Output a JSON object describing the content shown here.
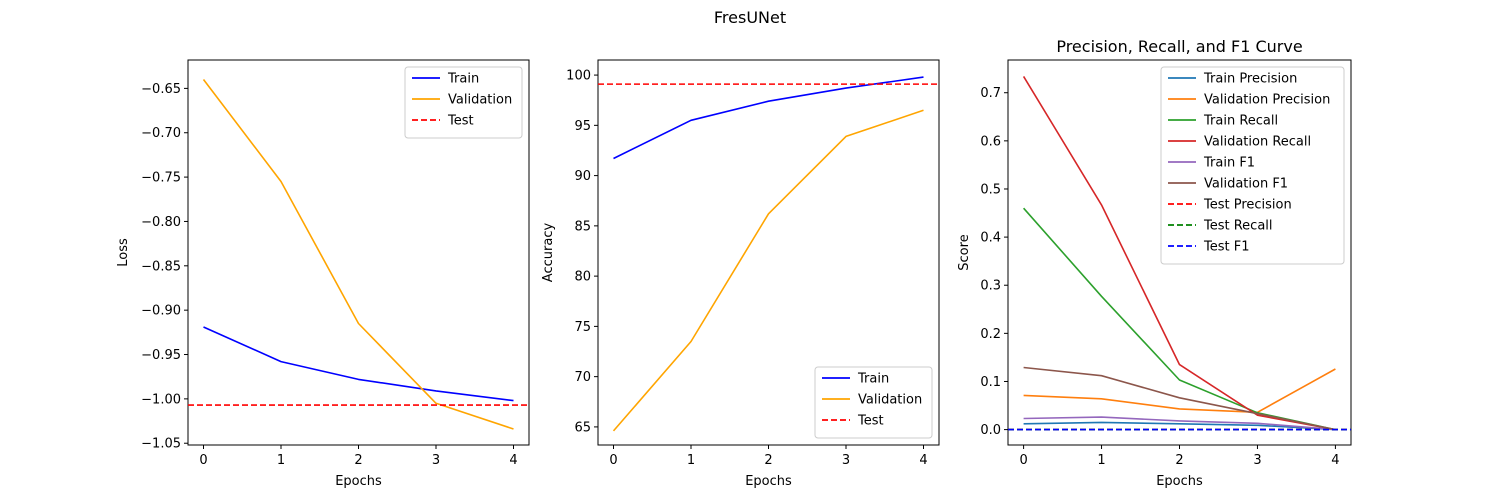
{
  "figure_title": "FresUNet",
  "chart_data": [
    {
      "type": "line",
      "title": "",
      "xlabel": "Epochs",
      "ylabel": "Loss",
      "xlim": [
        -0.2,
        4.2
      ],
      "ylim": [
        -1.052,
        -0.618
      ],
      "xticks": [
        0,
        1,
        2,
        3,
        4
      ],
      "yticks": [
        -0.65,
        -0.7,
        -0.75,
        -0.8,
        -0.85,
        -0.9,
        -0.95,
        -1.0,
        -1.05
      ],
      "ytick_labels": [
        "−0.65",
        "−0.70",
        "−0.75",
        "−0.80",
        "−0.85",
        "−0.90",
        "−0.95",
        "−1.00",
        "−1.05"
      ],
      "legend_position": "upper-right",
      "x": [
        0,
        1,
        2,
        3,
        4
      ],
      "series": [
        {
          "name": "Train",
          "values": [
            -0.919,
            -0.958,
            -0.978,
            -0.991,
            -1.002
          ],
          "color": "#0000ff",
          "dash": false
        },
        {
          "name": "Validation",
          "values": [
            -0.64,
            -0.755,
            -0.915,
            -1.005,
            -1.034
          ],
          "color": "#ffa500",
          "dash": false
        }
      ],
      "hlines": [
        {
          "name": "Test",
          "value": -1.007,
          "color": "#ff0000",
          "dash": true
        }
      ]
    },
    {
      "type": "line",
      "title": "",
      "xlabel": "Epochs",
      "ylabel": "Accuracy",
      "xlim": [
        -0.2,
        4.2
      ],
      "ylim": [
        63.2,
        101.5
      ],
      "xticks": [
        0,
        1,
        2,
        3,
        4
      ],
      "yticks": [
        65,
        70,
        75,
        80,
        85,
        90,
        95,
        100
      ],
      "ytick_labels": [
        "65",
        "70",
        "75",
        "80",
        "85",
        "90",
        "95",
        "100"
      ],
      "legend_position": "lower-right",
      "x": [
        0,
        1,
        2,
        3,
        4
      ],
      "series": [
        {
          "name": "Train",
          "values": [
            91.7,
            95.5,
            97.4,
            98.7,
            99.8
          ],
          "color": "#0000ff",
          "dash": false
        },
        {
          "name": "Validation",
          "values": [
            64.6,
            73.5,
            86.2,
            93.9,
            96.5
          ],
          "color": "#ffa500",
          "dash": false
        }
      ],
      "hlines": [
        {
          "name": "Test",
          "value": 99.1,
          "color": "#ff0000",
          "dash": true
        }
      ]
    },
    {
      "type": "line",
      "title": "Precision, Recall, and F1 Curve",
      "xlabel": "Epochs",
      "ylabel": "Score",
      "xlim": [
        -0.2,
        4.2
      ],
      "ylim": [
        -0.032,
        0.768
      ],
      "xticks": [
        0,
        1,
        2,
        3,
        4
      ],
      "yticks": [
        0.0,
        0.1,
        0.2,
        0.3,
        0.4,
        0.5,
        0.6,
        0.7
      ],
      "ytick_labels": [
        "0.0",
        "0.1",
        "0.2",
        "0.3",
        "0.4",
        "0.5",
        "0.6",
        "0.7"
      ],
      "legend_position": "upper-right",
      "x": [
        0,
        1,
        2,
        3,
        4
      ],
      "series": [
        {
          "name": "Train Precision",
          "values": [
            0.012,
            0.015,
            0.012,
            0.009,
            0.0
          ],
          "color": "#1f77b4",
          "dash": false
        },
        {
          "name": "Validation Precision",
          "values": [
            0.071,
            0.064,
            0.043,
            0.036,
            0.126
          ],
          "color": "#ff7f0e",
          "dash": false
        },
        {
          "name": "Train Recall",
          "values": [
            0.46,
            0.277,
            0.103,
            0.035,
            0.0
          ],
          "color": "#2ca02c",
          "dash": false
        },
        {
          "name": "Validation Recall",
          "values": [
            0.734,
            0.467,
            0.135,
            0.03,
            0.0
          ],
          "color": "#d62728",
          "dash": false
        },
        {
          "name": "Train F1",
          "values": [
            0.023,
            0.026,
            0.018,
            0.013,
            0.0
          ],
          "color": "#9467bd",
          "dash": false
        },
        {
          "name": "Validation F1",
          "values": [
            0.129,
            0.112,
            0.066,
            0.033,
            0.0
          ],
          "color": "#8c564b",
          "dash": false
        }
      ],
      "hlines": [
        {
          "name": "Test Precision",
          "value": 0.0,
          "color": "#ff0000",
          "dash": true
        },
        {
          "name": "Test Recall",
          "value": 0.0,
          "color": "#008000",
          "dash": true
        },
        {
          "name": "Test F1",
          "value": 0.0,
          "color": "#0000ff",
          "dash": true
        }
      ]
    }
  ]
}
